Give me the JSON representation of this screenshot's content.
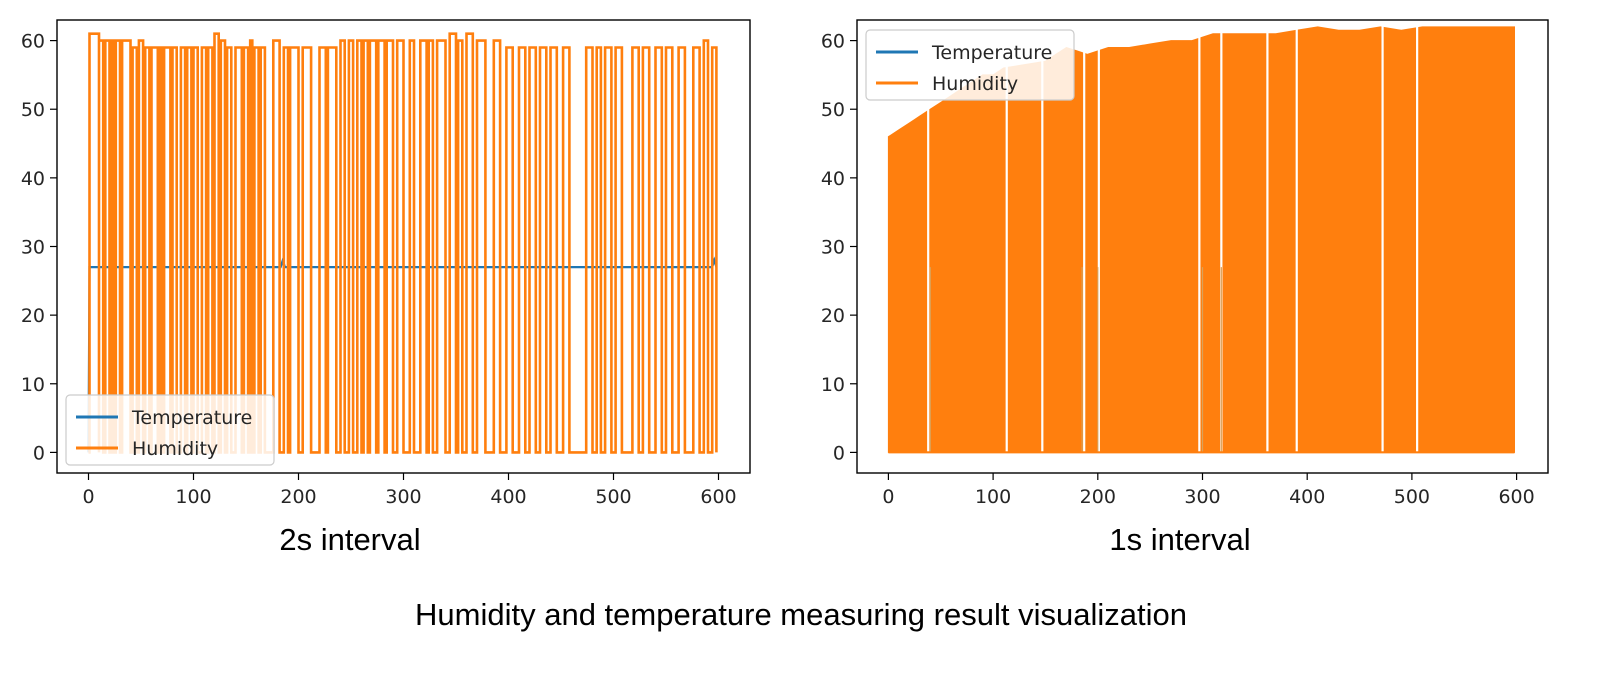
{
  "colors": {
    "temperature": "#1f77b4",
    "humidity": "#ff7f0e"
  },
  "chart_data": [
    {
      "type": "line",
      "xlim": [
        -30,
        630
      ],
      "ylim": [
        -3,
        63
      ],
      "xticks": [
        0,
        100,
        200,
        300,
        400,
        500,
        600
      ],
      "yticks": [
        0,
        10,
        20,
        30,
        40,
        50,
        60
      ],
      "grid": false,
      "legend_position": "lower-left",
      "series": [
        {
          "name": "Temperature",
          "color": "#1f77b4",
          "points": [
            [
              0,
              0
            ],
            [
              1,
              27
            ],
            [
              183,
              27
            ],
            [
              185,
              28
            ],
            [
              187,
              27
            ],
            [
              594,
              27
            ],
            [
              596,
              28
            ],
            [
              598,
              27
            ]
          ]
        },
        {
          "name": "Humidity",
          "color": "#ff7f0e",
          "baseline": 59,
          "high_segments": [
            [
              1,
              10,
              61
            ],
            [
              10,
              14,
              60
            ],
            [
              16,
              20,
              60
            ],
            [
              22,
              24,
              60
            ],
            [
              26,
              30,
              60
            ],
            [
              32,
              40,
              60
            ],
            [
              42,
              46,
              59
            ],
            [
              48,
              52,
              60
            ],
            [
              54,
              58,
              59
            ],
            [
              60,
              66,
              59
            ],
            [
              68,
              70,
              59
            ],
            [
              72,
              78,
              59
            ],
            [
              80,
              84,
              59
            ],
            [
              88,
              92,
              59
            ],
            [
              94,
              98,
              59
            ],
            [
              100,
              104,
              59
            ],
            [
              108,
              112,
              59
            ],
            [
              114,
              118,
              59
            ],
            [
              120,
              124,
              61
            ],
            [
              126,
              130,
              60
            ],
            [
              132,
              136,
              59
            ],
            [
              140,
              146,
              59
            ],
            [
              148,
              152,
              59
            ],
            [
              154,
              156,
              60
            ],
            [
              158,
              162,
              59
            ],
            [
              164,
              168,
              59
            ],
            [
              176,
              182,
              60
            ],
            [
              186,
              190,
              59
            ],
            [
              192,
              200,
              59
            ],
            [
              204,
              212,
              59
            ],
            [
              220,
              226,
              59
            ],
            [
              228,
              236,
              59
            ],
            [
              240,
              244,
              60
            ],
            [
              248,
              252,
              60
            ],
            [
              256,
              260,
              60
            ],
            [
              262,
              266,
              60
            ],
            [
              268,
              274,
              60
            ],
            [
              276,
              282,
              60
            ],
            [
              284,
              290,
              60
            ],
            [
              294,
              300,
              60
            ],
            [
              306,
              310,
              60
            ],
            [
              316,
              322,
              60
            ],
            [
              324,
              328,
              60
            ],
            [
              332,
              340,
              60
            ],
            [
              344,
              350,
              61
            ],
            [
              352,
              356,
              60
            ],
            [
              360,
              366,
              61
            ],
            [
              370,
              378,
              60
            ],
            [
              386,
              392,
              60
            ],
            [
              398,
              404,
              59
            ],
            [
              410,
              416,
              59
            ],
            [
              420,
              426,
              59
            ],
            [
              430,
              436,
              59
            ],
            [
              440,
              446,
              59
            ],
            [
              452,
              458,
              59
            ],
            [
              474,
              480,
              59
            ],
            [
              484,
              488,
              59
            ],
            [
              492,
              498,
              59
            ],
            [
              502,
              508,
              59
            ],
            [
              518,
              524,
              59
            ],
            [
              528,
              534,
              59
            ],
            [
              540,
              546,
              59
            ],
            [
              550,
              556,
              59
            ],
            [
              562,
              568,
              59
            ],
            [
              576,
              582,
              59
            ],
            [
              586,
              590,
              60
            ],
            [
              594,
              598,
              59
            ]
          ]
        }
      ]
    },
    {
      "type": "area",
      "xlim": [
        -30,
        630
      ],
      "ylim": [
        -3,
        63
      ],
      "xticks": [
        0,
        100,
        200,
        300,
        400,
        500,
        600
      ],
      "yticks": [
        0,
        10,
        20,
        30,
        40,
        50,
        60
      ],
      "grid": false,
      "legend_position": "upper-left",
      "series": [
        {
          "name": "Temperature",
          "color": "#1f77b4",
          "faint_spikes_x": [
            40,
            185,
            200,
            300,
            318
          ],
          "faint_spike_value": 27
        },
        {
          "name": "Humidity",
          "color": "#ff7f0e",
          "x": [
            0,
            5,
            10,
            15,
            20,
            25,
            30,
            40,
            50,
            60,
            70,
            80,
            90,
            100,
            110,
            130,
            150,
            160,
            170,
            180,
            190,
            210,
            230,
            250,
            270,
            290,
            310,
            330,
            350,
            370,
            390,
            410,
            430,
            450,
            470,
            490,
            510,
            530,
            550,
            570,
            590,
            598
          ],
          "values": [
            46,
            46.5,
            47,
            47.5,
            48,
            48.5,
            49,
            50,
            51,
            52,
            53,
            54,
            55,
            55,
            56,
            56.5,
            57,
            58,
            59,
            58.5,
            58,
            59,
            59,
            59.5,
            60,
            60,
            61,
            61,
            61,
            61,
            61.5,
            62,
            61.5,
            61.5,
            62,
            61.5,
            62,
            62,
            62,
            62,
            62,
            62
          ],
          "gaps_x": [
            38,
            113,
            147,
            187,
            201,
            297,
            318,
            362,
            390,
            472,
            505
          ]
        }
      ]
    }
  ],
  "plots": [
    {
      "legend": [
        "Temperature",
        "Humidity"
      ],
      "caption": "2s interval"
    },
    {
      "legend": [
        "Temperature",
        "Humidity"
      ],
      "caption": "1s interval"
    }
  ],
  "figure_caption": "Humidity and temperature measuring result visualization"
}
